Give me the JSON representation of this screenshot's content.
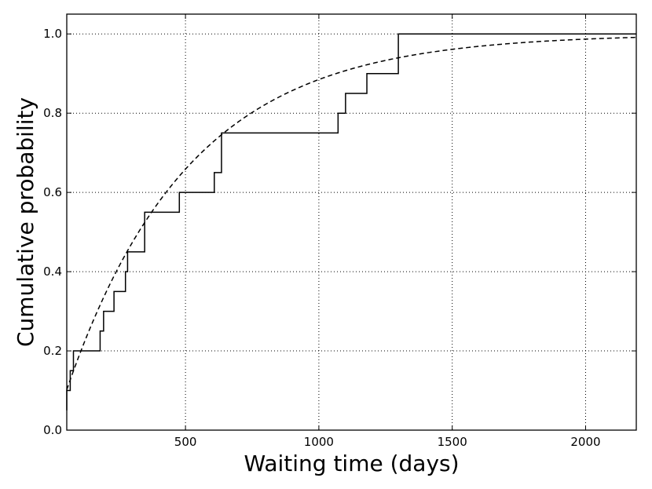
{
  "chart_data": {
    "type": "line",
    "xlabel": "Waiting time (days)",
    "ylabel": "Cumulative probability",
    "xlim": [
      55,
      2190
    ],
    "ylim": [
      0.0,
      1.05
    ],
    "x_ticks": [
      500,
      1000,
      1500,
      2000
    ],
    "y_ticks": [
      0.0,
      0.2,
      0.4,
      0.6,
      0.8,
      1.0
    ],
    "x_tick_labels": [
      "500",
      "1000",
      "1500",
      "2000"
    ],
    "y_tick_labels": [
      "0.0",
      "0.2",
      "0.4",
      "0.6",
      "0.8",
      "1.0"
    ],
    "grid": true,
    "series": [
      {
        "style": "solid-step",
        "color": "#000000",
        "points": [
          [
            55,
            0.05
          ],
          [
            55,
            0.1
          ],
          [
            68,
            0.1
          ],
          [
            68,
            0.15
          ],
          [
            80,
            0.15
          ],
          [
            80,
            0.2
          ],
          [
            180,
            0.2
          ],
          [
            180,
            0.25
          ],
          [
            193,
            0.25
          ],
          [
            193,
            0.3
          ],
          [
            232,
            0.3
          ],
          [
            232,
            0.35
          ],
          [
            275,
            0.35
          ],
          [
            275,
            0.4
          ],
          [
            283,
            0.4
          ],
          [
            283,
            0.45
          ],
          [
            347,
            0.45
          ],
          [
            347,
            0.55
          ],
          [
            477,
            0.55
          ],
          [
            477,
            0.6
          ],
          [
            608,
            0.6
          ],
          [
            608,
            0.65
          ],
          [
            635,
            0.65
          ],
          [
            635,
            0.75
          ],
          [
            1072,
            0.75
          ],
          [
            1072,
            0.8
          ],
          [
            1100,
            0.8
          ],
          [
            1100,
            0.85
          ],
          [
            1180,
            0.85
          ],
          [
            1180,
            0.9
          ],
          [
            1298,
            0.9
          ],
          [
            1298,
            1.0
          ],
          [
            2190,
            1.0
          ]
        ]
      },
      {
        "style": "dashed",
        "color": "#000000",
        "model": "exponential",
        "params": {
          "a": 0.102,
          "scale": 460,
          "x0": 55
        }
      }
    ]
  }
}
